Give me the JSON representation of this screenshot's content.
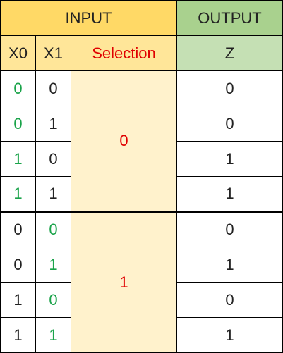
{
  "header": {
    "input_label": "INPUT",
    "output_label": "OUTPUT"
  },
  "columns": {
    "x0": "X0",
    "x1": "X1",
    "selection": "Selection",
    "z": "Z"
  },
  "groups": [
    {
      "selection": "0",
      "rows": [
        {
          "x0": "0",
          "x1": "0",
          "z": "0",
          "x0_highlight": true,
          "x1_highlight": false
        },
        {
          "x0": "0",
          "x1": "1",
          "z": "0",
          "x0_highlight": true,
          "x1_highlight": false
        },
        {
          "x0": "1",
          "x1": "0",
          "z": "1",
          "x0_highlight": true,
          "x1_highlight": false
        },
        {
          "x0": "1",
          "x1": "1",
          "z": "1",
          "x0_highlight": true,
          "x1_highlight": false
        }
      ]
    },
    {
      "selection": "1",
      "rows": [
        {
          "x0": "0",
          "x1": "0",
          "z": "0",
          "x0_highlight": false,
          "x1_highlight": true
        },
        {
          "x0": "0",
          "x1": "1",
          "z": "1",
          "x0_highlight": false,
          "x1_highlight": true
        },
        {
          "x0": "1",
          "x1": "0",
          "z": "0",
          "x0_highlight": false,
          "x1_highlight": true
        },
        {
          "x0": "1",
          "x1": "1",
          "z": "1",
          "x0_highlight": false,
          "x1_highlight": true
        }
      ]
    }
  ],
  "colors": {
    "input_header": "#ffd966",
    "output_header": "#a9d18e",
    "input_subheader": "#ffe699",
    "output_subheader": "#c5e0b4",
    "selection_fill": "#fff2cc",
    "highlight_green": "#1aa34a",
    "selection_red": "#e00000"
  }
}
